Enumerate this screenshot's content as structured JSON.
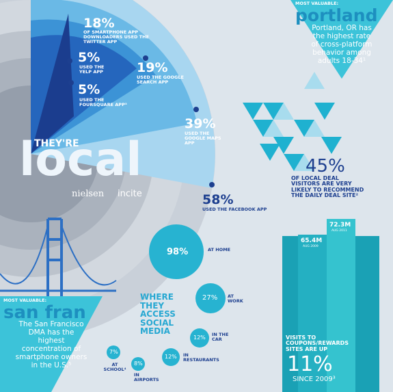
{
  "header": {
    "kicker": "THEY'RE",
    "title": "local",
    "brands": [
      "nielsen",
      "incite"
    ]
  },
  "apps": [
    {
      "value": "18%",
      "label": "OF SMARTPHONE APP DOWNLOADERS USED THE TWITTER APP"
    },
    {
      "value": "5%",
      "label": "USED THE YELP APP"
    },
    {
      "value": "19%",
      "label": "USED THE GOOGLE SEARCH APP"
    },
    {
      "value": "5%",
      "label": "USED THE FOURSQUARE APP³"
    },
    {
      "value": "39%",
      "label": "USED THE GOOGLE MAPS APP"
    },
    {
      "value": "58%",
      "label": "USED THE FACEBOOK APP"
    }
  ],
  "portland": {
    "kicker": "MOST VALUABLE:",
    "city": "portland",
    "text": "Portland, OR has the highest rate of cross-platform behavior among adults 18-34¹"
  },
  "deal": {
    "value": "45%",
    "text": "OF LOCAL DEAL VISITORS ARE VERY LIKELY TO RECOMMEND THE DAILY DEAL SITE²"
  },
  "social": {
    "title": "WHERE THEY ACCESS SOCIAL MEDIA",
    "places": [
      {
        "value": "98%",
        "label": "AT HOME"
      },
      {
        "value": "27%",
        "label": "AT WORK"
      },
      {
        "value": "12%",
        "label": "IN THE CAR"
      },
      {
        "value": "12%",
        "label": "IN RESTAURANTS"
      },
      {
        "value": "7%",
        "label": "AT SCHOOL⁴"
      },
      {
        "value": "8%",
        "label": "IN AIRPORTS"
      }
    ]
  },
  "sanfran": {
    "kicker": "MOST VALUABLE:",
    "city": "san fran",
    "text": "The San Francisco DMA has the highest concentration of smartphone owners in the U.S.⁵"
  },
  "coupons": {
    "bars": [
      {
        "value": "72.3M",
        "date": "AUG 2011"
      },
      {
        "value": "65.4M",
        "date": "AUG 2009"
      }
    ],
    "text": "VISITS TO COUPONS/REWARDS SITES ARE UP",
    "value": "11%",
    "since": "SINCE 2009³"
  }
}
